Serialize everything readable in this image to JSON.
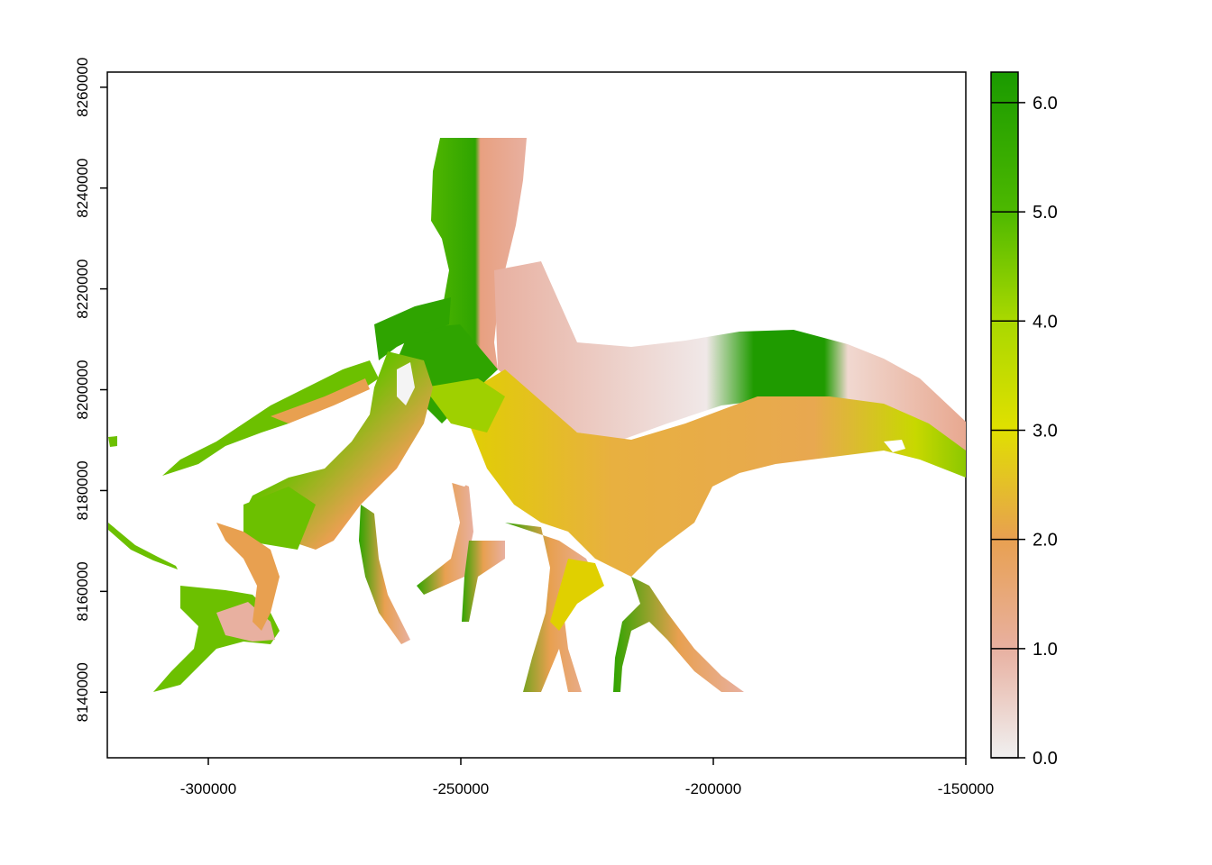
{
  "colors": {
    "green": "#1f9b00",
    "mid_green": "#6cc000",
    "yellow": "#e0e000",
    "orange": "#e8a050",
    "salmon": "#e8b0a0",
    "white": "#f0f0f0"
  },
  "chart_data": {
    "type": "heatmap",
    "title": "",
    "xlabel": "",
    "ylabel": "",
    "xlim": [
      -320000,
      -150000
    ],
    "ylim": [
      8127000,
      8263000
    ],
    "x_ticks": [
      {
        "value": -300000,
        "label": "-300000"
      },
      {
        "value": -250000,
        "label": "-250000"
      },
      {
        "value": -200000,
        "label": "-200000"
      },
      {
        "value": -150000,
        "label": "-150000"
      }
    ],
    "y_ticks": [
      {
        "value": 8140000,
        "label": "8140000"
      },
      {
        "value": 8160000,
        "label": "8160000"
      },
      {
        "value": 8180000,
        "label": "8180000"
      },
      {
        "value": 8200000,
        "label": "8200000"
      },
      {
        "value": 8220000,
        "label": "8220000"
      },
      {
        "value": 8240000,
        "label": "8240000"
      },
      {
        "value": 8260000,
        "label": "8260000"
      }
    ],
    "legend": {
      "range": [
        0,
        6.28
      ],
      "ticks": [
        {
          "value": 0,
          "label": "0.0"
        },
        {
          "value": 1,
          "label": "1.0"
        },
        {
          "value": 2,
          "label": "2.0"
        },
        {
          "value": 3,
          "label": "3.0"
        },
        {
          "value": 4,
          "label": "4.0"
        },
        {
          "value": 5,
          "label": "5.0"
        },
        {
          "value": 6,
          "label": "6.0"
        }
      ],
      "placement": "right"
    }
  }
}
